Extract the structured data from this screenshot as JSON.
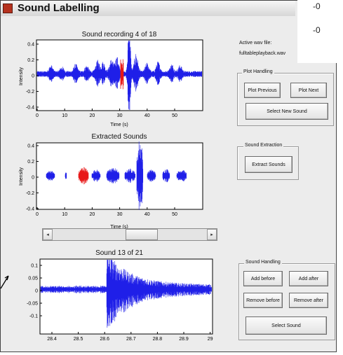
{
  "window": {
    "title": "Sound Labelling",
    "overlay_lines": [
      "-0",
      "-0"
    ]
  },
  "plots": [
    {
      "id": "recording",
      "title": "Sound recording 4 of 18",
      "xlabel": "Time (s)",
      "ylabel": "Intensity",
      "yticks": [
        "0.4",
        "0.2",
        "0",
        "-0.2",
        "-0.4"
      ],
      "xticks": [
        "0",
        "10",
        "20",
        "30",
        "40",
        "50"
      ]
    },
    {
      "id": "extracted",
      "title": "Extracted Sounds",
      "xlabel": "Time (s)",
      "ylabel": "Intensity",
      "yticks": [
        "0.4",
        "0.2",
        "0",
        "-0.2",
        "-0.4"
      ],
      "xticks": [
        "0",
        "10",
        "20",
        "30",
        "40",
        "50"
      ]
    },
    {
      "id": "sound",
      "title": "Sound 13 of 21",
      "xlabel": "",
      "ylabel": "",
      "yticks": [
        "0.1",
        "0.05",
        "0",
        "-0.05",
        "-0.1"
      ],
      "xticks": [
        "28.4",
        "28.5",
        "28.6",
        "28.7",
        "28.8",
        "28.9",
        "29"
      ]
    }
  ],
  "colors": {
    "signal": "#1f1fe8",
    "highlight": "#e81818"
  },
  "active_file": {
    "label": "Active wav file:",
    "value": "fulltableplayback.wav"
  },
  "panels": {
    "plot_handling": {
      "title": "Plot Handling",
      "plot_previous": "Plot Previous",
      "plot_next": "Plot Next",
      "select_new_sound": "Select New Sound"
    },
    "sound_extraction": {
      "title": "Sound Extraction",
      "extract_sounds": "Extract Sounds"
    },
    "sound_handling": {
      "title": "Sound Handling",
      "add_before": "Add before",
      "add_after": "Add after",
      "remove_before": "Remove before",
      "remove_after": "Remove after",
      "select_sound": "Select Sound"
    }
  },
  "slider": {
    "left_arrow": "◂",
    "right_arrow": "▸",
    "value_fraction": 0.6
  }
}
